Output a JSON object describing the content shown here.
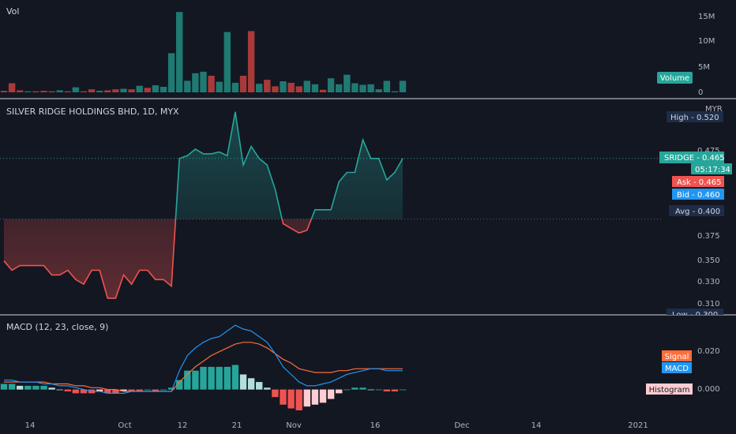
{
  "colors": {
    "background": "#131722",
    "up": "#26a69a",
    "down": "#ef5350",
    "vol_up": "#1f7a72",
    "vol_down": "#a93a3a",
    "grid": "#2a2e39",
    "text": "#d1d4dc",
    "axis_text": "#b2b5be",
    "macd_line": "#2196f3",
    "signal_line": "#ff6d3a",
    "hist_up_strong": "#26a69a",
    "hist_up_weak": "#b2dfdb",
    "hist_down_strong": "#ef5350",
    "hist_down_weak": "#ffcdd2",
    "label_dark": "#1e2c47",
    "separator": "#d1d4dc"
  },
  "volume_pane": {
    "title": "Vol",
    "badge": "Volume",
    "y_ticks": [
      "15M",
      "10M",
      "5M",
      "0"
    ]
  },
  "price_pane": {
    "symbol": "SILVER RIDGE HOLDINGS BHD, 1D, MYX",
    "currency": "MYR",
    "y_ticks": [
      "0.475",
      "0.375",
      "0.350",
      "0.330",
      "0.310"
    ],
    "labels": {
      "high": "High - 0.520",
      "last": "SRIDGE - 0.465",
      "countdown": "05:17:34",
      "ask": "Ask - 0.465",
      "bid": "Bid - 0.460",
      "avg": "Avg - 0.400",
      "low": "Low - 0.300"
    }
  },
  "macd_pane": {
    "title": "MACD (12, 23, close, 9)",
    "y_ticks": [
      "0.020",
      "0.000"
    ],
    "badges": {
      "signal": "Signal",
      "macd": "MACD",
      "histogram": "Histogram"
    }
  },
  "x_axis": {
    "ticks": [
      "14",
      "Oct",
      "12",
      "21",
      "Nov",
      "16",
      "Dec",
      "14",
      "2021"
    ]
  },
  "chart_data": [
    {
      "type": "bar",
      "title": "Vol",
      "values_millions": [
        0.3,
        1.8,
        0.4,
        0.2,
        0.2,
        0.3,
        0.2,
        0.4,
        0.2,
        1.0,
        0.2,
        0.6,
        0.3,
        0.4,
        0.6,
        0.7,
        0.6,
        1.3,
        0.9,
        1.4,
        1.1,
        7.8,
        16.0,
        2.3,
        3.8,
        4.1,
        3.3,
        2.1,
        12.0,
        1.9,
        3.3,
        12.2,
        1.7,
        2.5,
        1.2,
        2.2,
        1.9,
        1.2,
        2.3,
        1.6,
        0.5,
        2.8,
        1.6,
        3.5,
        1.8,
        1.5,
        1.6,
        0.6,
        2.3,
        0.2,
        2.3
      ],
      "direction": [
        "d",
        "d",
        "d",
        "u",
        "d",
        "d",
        "d",
        "u",
        "d",
        "u",
        "d",
        "d",
        "u",
        "d",
        "d",
        "u",
        "d",
        "u",
        "d",
        "u",
        "u",
        "u",
        "u",
        "u",
        "u",
        "u",
        "d",
        "u",
        "u",
        "u",
        "d",
        "d",
        "u",
        "d",
        "d",
        "u",
        "d",
        "d",
        "u",
        "u",
        "d",
        "u",
        "u",
        "u",
        "u",
        "u",
        "u",
        "u",
        "u",
        "u",
        "u"
      ],
      "ylim": [
        0,
        16.5
      ]
    },
    {
      "type": "line",
      "title": "SILVER RIDGE HOLDINGS BHD, 1D, MYX",
      "baseline": 0.4,
      "values": [
        0.355,
        0.345,
        0.35,
        0.35,
        0.35,
        0.35,
        0.34,
        0.34,
        0.345,
        0.335,
        0.33,
        0.345,
        0.345,
        0.315,
        0.315,
        0.34,
        0.33,
        0.345,
        0.345,
        0.335,
        0.335,
        0.328,
        0.465,
        0.468,
        0.475,
        0.47,
        0.47,
        0.472,
        0.468,
        0.515,
        0.458,
        0.478,
        0.465,
        0.458,
        0.432,
        0.395,
        0.39,
        0.385,
        0.388,
        0.41,
        0.41,
        0.41,
        0.44,
        0.45,
        0.45,
        0.485,
        0.465,
        0.465,
        0.442,
        0.45,
        0.465
      ],
      "ylim": [
        0.298,
        0.525
      ]
    },
    {
      "type": "bar",
      "title": "MACD (12, 23, close, 9)",
      "histogram": [
        0.003,
        0.003,
        0.002,
        0.002,
        0.002,
        0.002,
        0.001,
        0.0,
        -0.001,
        -0.002,
        -0.002,
        -0.002,
        -0.001,
        -0.002,
        -0.002,
        -0.001,
        -0.001,
        -0.001,
        0.0,
        -0.001,
        0.0,
        0.001,
        0.005,
        0.01,
        0.01,
        0.012,
        0.012,
        0.012,
        0.012,
        0.013,
        0.008,
        0.006,
        0.004,
        0.001,
        -0.004,
        -0.008,
        -0.01,
        -0.011,
        -0.009,
        -0.008,
        -0.007,
        -0.005,
        -0.002,
        0.0,
        0.001,
        0.001,
        0.0,
        0.0,
        -0.001,
        -0.001,
        0.0
      ],
      "macd_line": [
        0.005,
        0.005,
        0.004,
        0.004,
        0.004,
        0.003,
        0.003,
        0.002,
        0.002,
        0.001,
        0.0,
        -0.001,
        -0.001,
        -0.002,
        -0.002,
        -0.002,
        -0.001,
        -0.001,
        -0.001,
        -0.001,
        -0.001,
        -0.001,
        0.01,
        0.018,
        0.022,
        0.025,
        0.027,
        0.028,
        0.031,
        0.034,
        0.032,
        0.031,
        0.028,
        0.025,
        0.019,
        0.012,
        0.008,
        0.004,
        0.002,
        0.002,
        0.003,
        0.004,
        0.006,
        0.008,
        0.009,
        0.01,
        0.011,
        0.011,
        0.01,
        0.01,
        0.01
      ],
      "signal_line": [
        0.004,
        0.004,
        0.004,
        0.004,
        0.004,
        0.004,
        0.003,
        0.003,
        0.003,
        0.002,
        0.002,
        0.001,
        0.001,
        0.0,
        0.0,
        -0.001,
        -0.001,
        -0.001,
        -0.001,
        -0.001,
        -0.001,
        -0.001,
        0.004,
        0.008,
        0.012,
        0.015,
        0.018,
        0.02,
        0.022,
        0.024,
        0.025,
        0.025,
        0.024,
        0.022,
        0.019,
        0.016,
        0.014,
        0.011,
        0.01,
        0.009,
        0.009,
        0.009,
        0.01,
        0.01,
        0.011,
        0.011,
        0.011,
        0.011,
        0.011,
        0.011,
        0.011
      ],
      "ylim": [
        -0.011,
        0.037
      ]
    }
  ]
}
